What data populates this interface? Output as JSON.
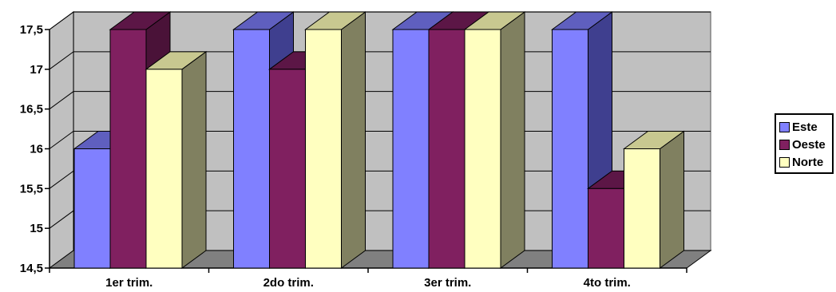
{
  "chart_data": {
    "type": "bar",
    "categories": [
      "1er trim.",
      "2do trim.",
      "3er trim.",
      "4to trim."
    ],
    "series": [
      {
        "name": "Este",
        "values": [
          16.0,
          17.5,
          17.5,
          17.5
        ],
        "color": "#8080FF",
        "side": "#3F3F8F",
        "top": "#5F5FBF"
      },
      {
        "name": "Oeste",
        "values": [
          17.5,
          17.0,
          17.5,
          15.5
        ],
        "color": "#802060",
        "side": "#4A1238",
        "top": "#5C1646"
      },
      {
        "name": "Norte",
        "values": [
          17.0,
          17.5,
          17.5,
          16.0
        ],
        "color": "#FFFFC0",
        "side": "#808060",
        "top": "#C8C890"
      }
    ],
    "ylim": [
      14.5,
      17.5
    ],
    "yticks": [
      "14,5",
      "15",
      "15,5",
      "16",
      "16,5",
      "17",
      "17,5"
    ],
    "grid": true,
    "legend_position": "right",
    "wall_color": "#C0C0C0",
    "floor_color": "#808080"
  }
}
